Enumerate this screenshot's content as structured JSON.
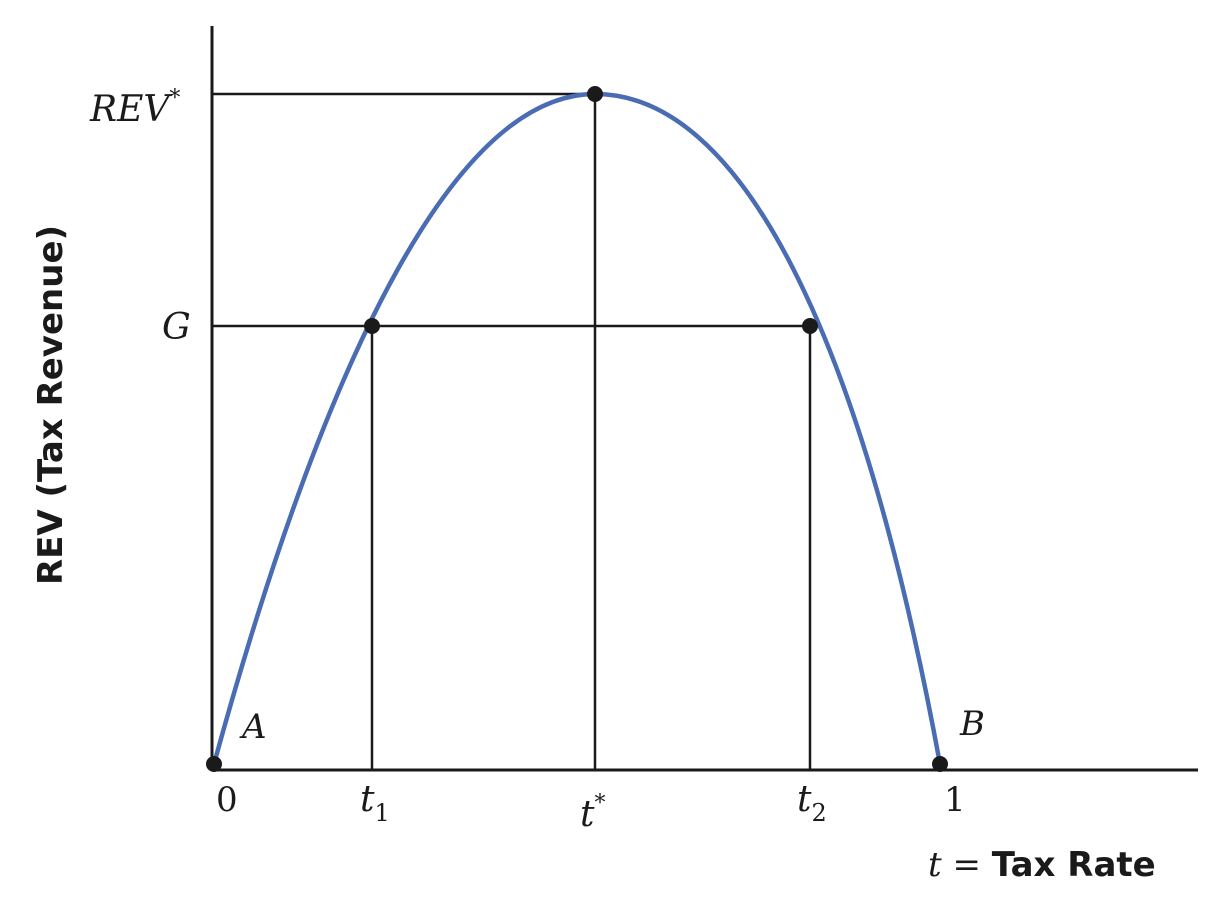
{
  "figure": {
    "y_axis_title": "REV (Tax Revenue)",
    "x_axis_title": {
      "variable": "t",
      "equals": " = ",
      "label": "Tax Rate"
    },
    "y_labels": {
      "rev_star": {
        "base": "REV",
        "sup": "*"
      },
      "g": "G"
    },
    "x_labels": {
      "zero": "0",
      "t1": {
        "base": "t",
        "sub": "1"
      },
      "t_star": {
        "base": "t",
        "sup": "*"
      },
      "t2": {
        "base": "t",
        "sub": "2"
      },
      "one": "1"
    },
    "point_labels": {
      "a": "A",
      "b": "B"
    },
    "curve_color": "#4a6cb3",
    "line_color": "#1a1a1a"
  }
}
